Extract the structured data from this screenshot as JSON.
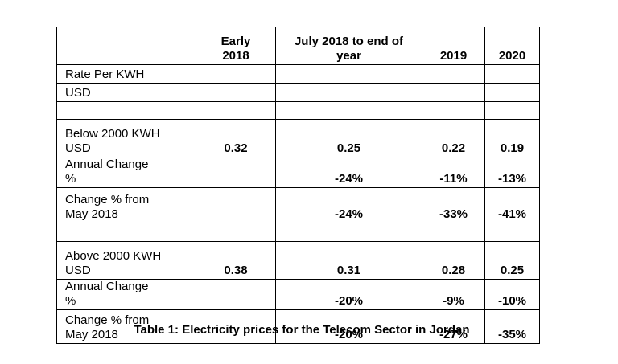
{
  "table": {
    "columns": [
      "Early 2018",
      "July 2018 to end of year",
      "2019",
      "2020"
    ],
    "rows": [
      {
        "label": "Rate Per KWH"
      },
      {
        "label": "USD"
      },
      {
        "label": "Below 2000 KWH USD",
        "cells": [
          "0.32",
          "0.25",
          "0.22",
          "0.19"
        ]
      },
      {
        "label": "Annual Change %",
        "cells": [
          null,
          "-24%",
          "-11%",
          "-13%"
        ]
      },
      {
        "label": "Change % from May 2018",
        "cells": [
          null,
          "-24%",
          "-33%",
          "-41%"
        ]
      },
      {
        "label": "Above 2000 KWH USD",
        "cells": [
          "0.38",
          "0.31",
          "0.28",
          "0.25"
        ]
      },
      {
        "label": "Annual Change %",
        "cells": [
          null,
          "-20%",
          "-9%",
          "-10%"
        ]
      },
      {
        "label": "Change % from May 2018",
        "cells": [
          null,
          "-20%",
          "-27%",
          "-35%"
        ]
      }
    ]
  },
  "caption": "Table 1: Electricity prices for the Telecom Sector in Jordan"
}
